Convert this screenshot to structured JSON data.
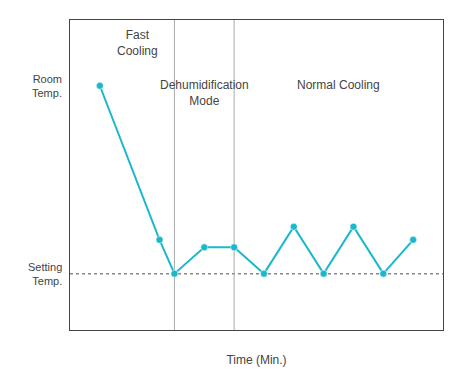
{
  "chart_data": {
    "type": "line",
    "x": [
      0,
      2.0,
      2.5,
      3.5,
      4.5,
      5.5,
      6.5,
      7.5,
      8.5,
      9.5,
      10.5
    ],
    "values": [
      10,
      1.8,
      0.0,
      1.4,
      1.4,
      0.0,
      2.5,
      0.0,
      2.5,
      0.0,
      1.8
    ],
    "color": "#1ab8cc",
    "marker": "circle",
    "xlim": [
      -1.0,
      11.5
    ],
    "ylim": [
      -3.0,
      13.5
    ],
    "tick_labels": false,
    "grid": false,
    "xlabel": "Time (Min.)",
    "start_label": "Room\nTemp.",
    "hline": {
      "y": 0.0,
      "label": "Setting\nTemp.",
      "line_style": "dotted"
    },
    "vlines": [
      2.5,
      4.5
    ],
    "annotations": [
      "Fast\nCooling",
      "Dehumidification\nMode",
      "Normal Cooling"
    ]
  }
}
